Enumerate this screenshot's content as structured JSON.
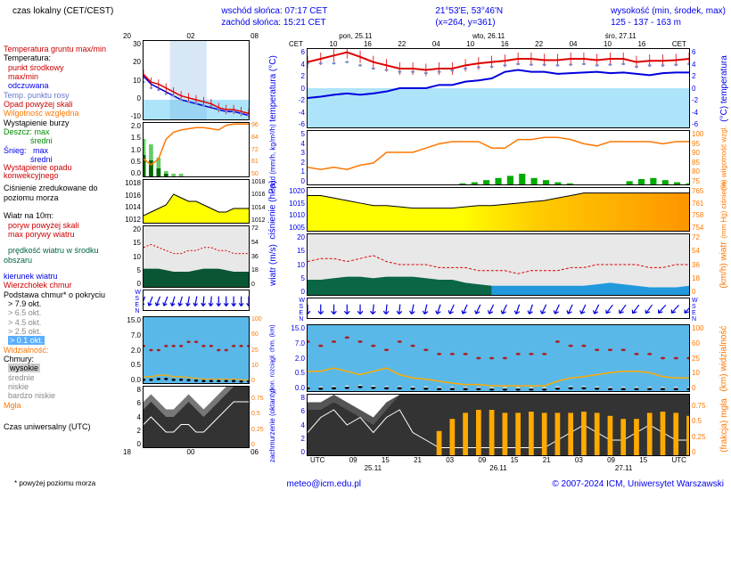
{
  "header": {
    "left": "czas lokalny (CET/CEST)",
    "c1a": "wschód słońca: 07:17 CET",
    "c1b": "zachód słońca: 15:21 CET",
    "c2a": "21°53'E, 53°46'N",
    "c2b": "(x=264, y=361)",
    "c3a": "wysokość (min, środek, max)",
    "c3b": "125 - 137 - 163 m"
  },
  "legend": {
    "tempg": "Temperatura gruntu max/min",
    "temp": "Temperatura:",
    "punkt": "punkt środkowy",
    "maxmin": "max/min",
    "odczuwana": "odczuwana",
    "rosa": "Temp. punktu rosy",
    "opadskali": "Opad powyżej skali",
    "wilg": "Wilgotność względna",
    "burza": "Wystąpienie burzy",
    "deszcz": "Deszcz:",
    "max": "max",
    "sredni": "średni",
    "snieg": "Śnieg:",
    "konw": "Wystąpienie opadu konwekcyjnego",
    "cisn": "Ciśnienie zredukowane do poziomu morza",
    "wiatr10": "Wiatr na 10m:",
    "poryw": "poryw powyżej skali",
    "maxporyw": "max porywy wiatru",
    "predkosc": "prędkość wiatru w środku obszaru",
    "kierunek": "kierunek wiatru",
    "wierzch": "Wierzchołek chmur",
    "podstawa": "Podstawa chmur* o pokryciu",
    "okt79": "> 7.9 okt.",
    "okt65": "> 6.5 okt.",
    "okt45": "> 4.5 okt.",
    "okt25": "> 2.5 okt.",
    "okt01": "> 0.1 okt.",
    "widz": "Widzialność:",
    "chmury": "Chmury:",
    "wysokie": "wysokie",
    "srednie": "średnie",
    "niskie": "niskie",
    "bniskie": "bardzo niskie",
    "mgla": "Mgła",
    "utc": "Czas uniwersalny (UTC)",
    "foot": "* powyżej poziomu morza"
  },
  "axislabels": {
    "big_top": [
      "CET",
      "10",
      "16",
      "22",
      "04",
      "10",
      "16",
      "22",
      "04",
      "10",
      "16",
      "CET"
    ],
    "big_dates_top": [
      "pon, 25.11",
      "wto, 26.11",
      "śro, 27.11"
    ],
    "big_bot": [
      "UTC",
      "09",
      "15",
      "21",
      "03",
      "09",
      "15",
      "21",
      "03",
      "09",
      "15",
      "UTC"
    ],
    "big_dates_bot": [
      "25.11",
      "26.11",
      "27.11"
    ],
    "small_top": [
      "20",
      "02",
      "08"
    ],
    "small_bot": [
      "18",
      "00",
      "06"
    ],
    "temp_l": [
      "30",
      "20",
      "10",
      "0",
      "-10"
    ],
    "temp_r": [
      "6",
      "4",
      "2",
      "0",
      "-2",
      "-4",
      "-6"
    ],
    "precip_l": [
      "2.0",
      "1.5",
      "1.0",
      "0.5",
      "0.0"
    ],
    "precip_r": [
      "96",
      "84",
      "72",
      "61",
      "50"
    ],
    "big_precip_l": [
      "5",
      "4",
      "3",
      "2",
      "1",
      "0"
    ],
    "big_precip_r": [
      "100",
      "95",
      "90",
      "85",
      "80",
      "75"
    ],
    "press_l": [
      "1018",
      "1016",
      "1014",
      "1012"
    ],
    "big_press_l": [
      "1020",
      "1015",
      "1010",
      "1005"
    ],
    "big_press_r": [
      "765",
      "761",
      "758",
      "754"
    ],
    "wind_l": [
      "20",
      "15",
      "10",
      "5",
      "0"
    ],
    "wind_r": [
      "72",
      "54",
      "36",
      "18",
      "0"
    ],
    "cloud_l": [
      "15.0",
      "7.0",
      "2.0",
      "0.5",
      "0.0"
    ],
    "cloud_r": [
      "100",
      "60",
      "25",
      "10",
      "0"
    ],
    "okta_l": [
      "8",
      "6",
      "4",
      "2",
      "0"
    ],
    "okta_r": [
      "",
      "0.75",
      "0.5",
      "0.25",
      "0"
    ]
  },
  "ylabels": {
    "temp": "temperatura (°C)",
    "temp_r": "(°C) temperatura",
    "opad": "opad (mm/h, kg/m²/h)",
    "wilg": "(%) wilgotność wzgl.",
    "cisn": "ciśnienie (hPa)",
    "cisn_r": "(mm Hg) ciśnienie",
    "wiatr": "wiatr (m/s)",
    "wiatr_r": "(km/h) wiatr",
    "wind_dir": "W S E N",
    "chm": "pion. rozciągł. chm. (km)",
    "widz": "(km) widzialność",
    "zachm": "zachmurzenie (oktanty)",
    "mgla": "(frakcja) mgła"
  },
  "footer": {
    "url": "meteo@icm.edu.pl",
    "copy": "© 2007-2024 ICM, Uniwersytet Warszawski"
  },
  "colors": {
    "skyblue": "#aee4fa",
    "yellow": "#ffff00",
    "orange": "#ff9500",
    "darkgreen": "#005522",
    "teal": "#008877",
    "green": "#00aa00",
    "red": "#dd0000",
    "blue": "#0000dd",
    "gray": "#888888",
    "dgray": "#444444",
    "ochre": "#ffaa00"
  },
  "charts": {
    "big_temp_red": [
      4,
      4.5,
      5,
      5.5,
      4.8,
      4,
      3.5,
      3,
      3,
      2.8,
      3,
      3,
      3.5,
      3.8,
      4,
      4.2,
      4.5,
      4.5,
      4.3,
      4.3,
      4.5,
      4.5,
      4.3,
      4.5,
      4.5,
      4,
      4.2,
      4.2,
      4.3,
      4.5
    ],
    "big_temp_blue": [
      -1.5,
      -1.3,
      -1,
      -0.8,
      -1,
      -0.8,
      -0.5,
      0,
      0,
      0,
      0.5,
      0.5,
      1,
      1.2,
      1.5,
      2.5,
      2.8,
      2.5,
      2.5,
      2.2,
      2.3,
      2.4,
      2.5,
      2.3,
      2.4,
      2.2,
      2,
      2.3,
      2.4,
      2.4
    ],
    "big_temp_dots": [
      3.8,
      3.8,
      3.8,
      4,
      3.5,
      3,
      2.8,
      2.5,
      2.5,
      2.3,
      2.5,
      2.7,
      3,
      3.2,
      3.3,
      3.5,
      3.7,
      3.6,
      3.6,
      3.5,
      3.6,
      3.7,
      3.5,
      3.6,
      3.7,
      3.3,
      3.5,
      3.5,
      3.6,
      3.7
    ],
    "big_hum": [
      83,
      82,
      83,
      82,
      84,
      85,
      90,
      90,
      90,
      92,
      94,
      95,
      95,
      95,
      92,
      92,
      96,
      96,
      97,
      97,
      96,
      94,
      93,
      95,
      95,
      95,
      95,
      94,
      95,
      95
    ],
    "big_precip_bars": [
      0,
      0,
      0,
      0,
      0,
      0,
      0,
      0,
      0,
      0,
      0,
      0,
      0,
      0.1,
      0.2,
      0.4,
      0.6,
      0.8,
      1.0,
      0.6,
      0.4,
      0.2,
      0.1,
      0,
      0,
      0,
      0,
      0.3,
      0.5,
      0.6,
      0.4,
      0.2,
      0.1
    ],
    "big_press": [
      1019,
      1019,
      1018,
      1017,
      1016,
      1015,
      1015,
      1014.5,
      1014,
      1014,
      1014,
      1014,
      1014.5,
      1015,
      1015,
      1015.5,
      1016,
      1016.5,
      1017,
      1018,
      1019,
      1020,
      1020,
      1020,
      1020,
      1020,
      1020,
      1020,
      1020,
      1020
    ],
    "big_wind_avg": [
      5,
      5,
      5.5,
      6,
      6,
      5.5,
      6,
      6,
      6,
      5.5,
      5,
      5,
      4,
      3.5,
      3,
      3,
      3,
      3,
      3,
      3,
      3,
      3,
      3.5,
      4,
      3.5,
      3,
      2.5,
      2.5,
      2.5,
      3
    ],
    "big_wind_gust": [
      11,
      12,
      12,
      11,
      12,
      13,
      11,
      10,
      10,
      10,
      9,
      9,
      9,
      8,
      8,
      8,
      7,
      8,
      8,
      8,
      9,
      9,
      10,
      10,
      10,
      10,
      9,
      9,
      10,
      10
    ],
    "big_wind_dir": [
      180,
      180,
      180,
      180,
      180,
      185,
      185,
      185,
      190,
      190,
      195,
      200,
      200,
      200,
      200,
      200,
      195,
      195,
      200,
      200,
      200,
      200,
      200,
      210,
      210,
      210,
      210,
      215,
      215,
      215
    ],
    "big_cloudtop": [
      12,
      11,
      12,
      13,
      12,
      11,
      10,
      12,
      11,
      10,
      9,
      9,
      9,
      8,
      8,
      8,
      9,
      9,
      9,
      12,
      11,
      11,
      10,
      10,
      10,
      9,
      9,
      8,
      8,
      8
    ],
    "big_cloudbase": [
      0.7,
      0.6,
      0.7,
      0.8,
      1,
      0.8,
      0.7,
      0.7,
      0.6,
      0.6,
      0.5,
      0.5,
      0.5,
      0.5,
      0.4,
      0.4,
      0.4,
      0.4,
      0.4,
      0.6,
      0.7,
      0.7,
      0.6,
      0.5,
      0.5,
      0.5,
      0.5,
      0.5,
      0.5,
      0.5
    ],
    "big_vis": [
      30,
      30,
      35,
      30,
      25,
      30,
      35,
      25,
      20,
      18,
      15,
      12,
      10,
      10,
      8,
      8,
      8,
      8,
      8,
      15,
      20,
      22,
      25,
      28,
      30,
      30,
      28,
      22,
      20,
      20
    ],
    "big_okta_hi": [
      3,
      5,
      6,
      4,
      5,
      3,
      5,
      6,
      3,
      2,
      1,
      1,
      1,
      1,
      1,
      1,
      1,
      1,
      1,
      2,
      3,
      4,
      3,
      2,
      2,
      3,
      4,
      3,
      2,
      2
    ],
    "big_okta_mid": [
      5,
      6,
      7,
      6,
      5,
      4,
      6,
      7,
      4,
      3,
      2,
      2,
      2,
      2,
      2,
      2,
      2,
      2,
      2,
      4,
      5,
      6,
      5,
      4,
      3,
      4,
      5,
      4,
      3,
      3
    ],
    "big_okta_lo": [
      7,
      7,
      8,
      7,
      6,
      5,
      7,
      8,
      8,
      8,
      8,
      8,
      8,
      8,
      8,
      8,
      8,
      8,
      8,
      8,
      8,
      8,
      8,
      8,
      8,
      8,
      8,
      8,
      8,
      8
    ],
    "big_okta_vlo": [
      6,
      6,
      7,
      6,
      5,
      4,
      6,
      8,
      8,
      8,
      8,
      8,
      8,
      8,
      8,
      8,
      8,
      8,
      8,
      8,
      8,
      8,
      8,
      8,
      8,
      8,
      8,
      8,
      8,
      8
    ],
    "big_fog_bars": [
      0,
      0,
      0,
      0,
      0,
      0,
      0,
      0,
      0,
      0,
      0.4,
      0.6,
      0.7,
      0.75,
      0.75,
      0.7,
      0.7,
      0.72,
      0.7,
      0.7,
      0.7,
      0.72,
      0.7,
      0.65,
      0.6,
      0.6,
      0.7,
      0.72,
      0.7,
      0.65
    ],
    "small_temp_red": [
      13,
      9,
      8,
      6,
      4,
      2,
      1,
      0,
      -1,
      -2,
      -4,
      -5,
      -5,
      -6,
      -7
    ],
    "small_temp_blue": [
      12,
      8,
      6,
      4,
      2,
      0,
      -1,
      -2,
      -3,
      -4,
      -5,
      -6,
      -6,
      -7,
      -8
    ],
    "small_temp_dots": [
      9,
      6,
      5,
      3,
      2,
      0,
      -1,
      -2,
      -3,
      -3,
      -5,
      -6,
      -6,
      -7,
      -8
    ],
    "small_hum": [
      65,
      60,
      65,
      82,
      88,
      90,
      91,
      92,
      92,
      91,
      90,
      94,
      95,
      95,
      95
    ],
    "small_precip_max": [
      1.4,
      1.2,
      0.7,
      0.2,
      0.1,
      0.1,
      0,
      0,
      0,
      0,
      0,
      0,
      0,
      0,
      0
    ],
    "small_precip_avg": [
      0.8,
      0.6,
      0.3,
      0.1,
      0,
      0,
      0,
      0,
      0,
      0,
      0,
      0,
      0,
      0,
      0
    ],
    "small_press": [
      1013,
      1013.5,
      1014,
      1014.5,
      1016,
      1015.5,
      1015,
      1015,
      1014.5,
      1014,
      1013.5,
      1013.5,
      1014,
      1014,
      1014
    ],
    "small_wind_avg": [
      6,
      6,
      6,
      5.5,
      5,
      5,
      5,
      5.5,
      6,
      6,
      6,
      5.5,
      5,
      5,
      5
    ],
    "small_wind_gust": [
      13,
      14,
      13,
      12,
      11,
      11,
      12,
      12,
      13,
      13,
      12,
      12,
      11,
      11,
      11
    ],
    "small_wind_dir": [
      200,
      200,
      200,
      200,
      195,
      195,
      190,
      190,
      185,
      185,
      180,
      180,
      180,
      180,
      180
    ],
    "small_cloudtop": [
      9,
      8,
      8,
      9,
      9,
      9,
      10,
      10,
      9,
      9,
      8,
      8,
      9,
      9,
      9
    ],
    "small_cloudbase": [
      0.8,
      0.8,
      1,
      1,
      0.8,
      0.8,
      0.7,
      0.6,
      0.5,
      0.5,
      0.5,
      0.5,
      0.5,
      0.4,
      0.4
    ],
    "small_okta_hi": [
      3,
      4,
      3,
      2,
      2,
      3,
      3,
      2,
      2,
      3,
      4,
      5,
      6,
      6,
      6
    ],
    "small_okta_lo": [
      6,
      7,
      6,
      5,
      5,
      6,
      7,
      6,
      5,
      6,
      7,
      8,
      8,
      8,
      8
    ],
    "small_okta_vlo": [
      5,
      6,
      5,
      4,
      4,
      5,
      6,
      5,
      4,
      5,
      6,
      7,
      8,
      8,
      8
    ]
  }
}
